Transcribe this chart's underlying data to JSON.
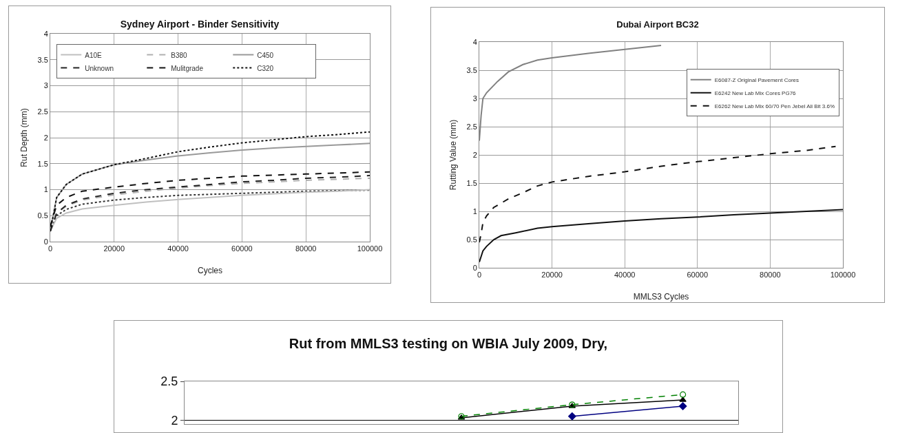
{
  "chart_data": [
    {
      "type": "line",
      "title": "Sydney Airport - Binder Sensitivity",
      "xlabel": "Cycles",
      "ylabel": "Rut Depth (mm)",
      "xlim": [
        0,
        100000
      ],
      "xticks": [
        0,
        20000,
        40000,
        60000,
        80000,
        100000
      ],
      "ylim": [
        0,
        4
      ],
      "yticks": [
        0,
        0.5,
        1,
        1.5,
        2,
        2.5,
        3,
        3.5,
        4
      ],
      "grid": true,
      "legend": "top left",
      "marker": "none",
      "x": [
        0,
        2000,
        5000,
        10000,
        20000,
        30000,
        40000,
        50000,
        60000,
        70000,
        80000,
        90000,
        100000
      ],
      "series": [
        {
          "color": "#333333",
          "line_style": "dotted",
          "values": [
            0.2,
            0.5,
            0.62,
            0.72,
            0.8,
            0.85,
            0.89,
            0.91,
            0.93,
            0.95,
            0.97,
            0.98,
            0.99
          ]
        },
        {
          "name": "A10E",
          "color": "#c0c0c0",
          "line_style": "solid",
          "values": [
            0.2,
            0.45,
            0.55,
            0.63,
            0.7,
            0.76,
            0.81,
            0.85,
            0.89,
            0.92,
            0.95,
            0.97,
            1.0
          ]
        },
        {
          "name": "B380",
          "color": "#b0b0b0",
          "line_style": "dashed",
          "values": [
            0.2,
            0.55,
            0.68,
            0.8,
            0.9,
            0.97,
            1.03,
            1.08,
            1.12,
            1.15,
            1.18,
            1.2,
            1.22
          ]
        },
        {
          "name": "C450",
          "color": "#999999",
          "line_style": "solid",
          "values": [
            0.2,
            0.85,
            1.1,
            1.3,
            1.48,
            1.57,
            1.65,
            1.71,
            1.76,
            1.8,
            1.83,
            1.86,
            1.89
          ]
        },
        {
          "name": "Unknown",
          "color": "#222222",
          "line_style": "dashed",
          "values": [
            0.2,
            0.55,
            0.7,
            0.82,
            0.93,
            1.0,
            1.05,
            1.1,
            1.15,
            1.18,
            1.22,
            1.24,
            1.27
          ]
        },
        {
          "name": "Mulitgrade",
          "color": "#111111",
          "line_style": "dashed",
          "values": [
            0.3,
            0.7,
            0.85,
            0.97,
            1.05,
            1.12,
            1.18,
            1.22,
            1.26,
            1.28,
            1.3,
            1.32,
            1.34
          ]
        },
        {
          "name": "C320",
          "color": "#111111",
          "line_style": "dotted",
          "values": [
            0.2,
            0.85,
            1.1,
            1.3,
            1.48,
            1.6,
            1.73,
            1.82,
            1.9,
            1.96,
            2.02,
            2.06,
            2.11
          ]
        }
      ]
    },
    {
      "type": "line",
      "title": "Dubai Airport BC32",
      "xlabel": "MMLS3 Cycles",
      "ylabel": "Rutting Value (mm)",
      "xlim": [
        0,
        100000
      ],
      "xticks": [
        0,
        20000,
        40000,
        60000,
        80000,
        100000
      ],
      "ylim": [
        0,
        4
      ],
      "yticks": [
        0,
        0.5,
        1,
        1.5,
        2,
        2.5,
        3,
        3.5,
        4
      ],
      "grid": true,
      "legend": "top right",
      "marker": "none",
      "series": [
        {
          "name": "E6087-Z Original Pavement Cores",
          "color": "#808080",
          "line_style": "solid",
          "x": [
            0,
            500,
            1000,
            2000,
            5000,
            8000,
            12000,
            16000,
            20000,
            30000,
            40000,
            50000
          ],
          "values": [
            2.25,
            2.7,
            3.0,
            3.1,
            3.3,
            3.47,
            3.6,
            3.68,
            3.72,
            3.8,
            3.87,
            3.94
          ]
        },
        {
          "name": "E6242 New Lab Mix Cores PG76",
          "color": "#111111",
          "line_style": "solid",
          "x": [
            0,
            1000,
            2000,
            4000,
            6000,
            10000,
            16000,
            20000,
            30000,
            40000,
            50000,
            60000,
            70000,
            80000,
            90000,
            100000
          ],
          "values": [
            0.1,
            0.3,
            0.38,
            0.5,
            0.57,
            0.62,
            0.7,
            0.73,
            0.78,
            0.83,
            0.87,
            0.9,
            0.94,
            0.97,
            1.0,
            1.03
          ]
        },
        {
          "name": "E6262 New Lab Mix 60/70 Pen Jebel Ali Bit 3.6%",
          "color": "#111111",
          "line_style": "dashed",
          "x": [
            0,
            500,
            1000,
            2000,
            4000,
            8000,
            12000,
            16000,
            20000,
            30000,
            40000,
            50000,
            60000,
            70000,
            80000,
            90000,
            98000
          ],
          "values": [
            0.45,
            0.6,
            0.8,
            0.92,
            1.07,
            1.22,
            1.33,
            1.45,
            1.52,
            1.62,
            1.7,
            1.8,
            1.88,
            1.95,
            2.02,
            2.08,
            2.15
          ]
        }
      ]
    },
    {
      "type": "line",
      "title": "Rut from MMLS3 testing on WBIA July 2009, Dry,",
      "ylim": [
        1.95,
        2.5
      ],
      "yticks": [
        2,
        2.5
      ],
      "grid": "y",
      "tick_labels": "y",
      "legend": false,
      "categories": [
        null,
        null,
        null,
        null,
        null
      ],
      "series": [
        {
          "color": "#000080",
          "line_style": "solid",
          "marker": "diamond",
          "values": [
            null,
            null,
            null,
            2.05,
            2.18
          ]
        },
        {
          "color": "#000000",
          "line_style": "solid",
          "marker": "triangle",
          "values": [
            null,
            null,
            2.03,
            2.18,
            2.26
          ]
        },
        {
          "color": "#008000",
          "line_style": "dashed",
          "marker": "circle",
          "values": [
            null,
            null,
            2.05,
            2.2,
            2.33
          ]
        }
      ]
    }
  ]
}
